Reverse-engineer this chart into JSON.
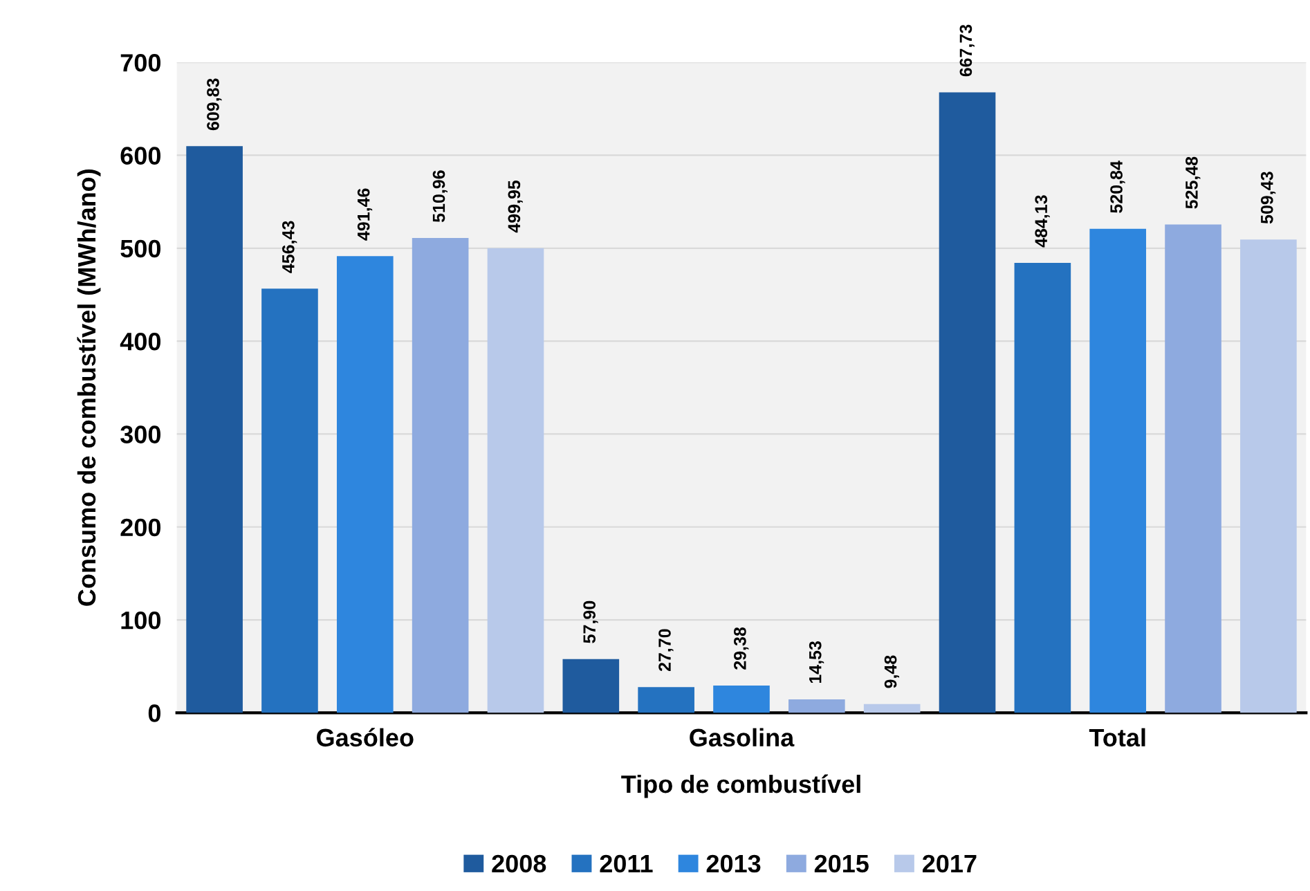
{
  "chart_data": {
    "type": "bar",
    "xlabel": "Tipo de combustível",
    "ylabel": "Consumo de combustível (MWh/ano)",
    "categories": [
      "Gasóleo",
      "Gasolina",
      "Total"
    ],
    "series": [
      {
        "name": "2008",
        "color": "#1f5b9e",
        "values": [
          609.83,
          57.9,
          667.73
        ],
        "value_labels": [
          "609,83",
          "57,90",
          "667,73"
        ]
      },
      {
        "name": "2011",
        "color": "#2472c0",
        "values": [
          456.43,
          27.7,
          484.13
        ],
        "value_labels": [
          "456,43",
          "27,70",
          "484,13"
        ]
      },
      {
        "name": "2013",
        "color": "#2e86de",
        "values": [
          491.46,
          29.38,
          520.84
        ],
        "value_labels": [
          "491,46",
          "29,38",
          "520,84"
        ]
      },
      {
        "name": "2015",
        "color": "#8eaadf",
        "values": [
          510.96,
          14.53,
          525.48
        ],
        "value_labels": [
          "510,96",
          "14,53",
          "525,48"
        ]
      },
      {
        "name": "2017",
        "color": "#b8c9ea",
        "values": [
          499.95,
          9.48,
          509.43
        ],
        "value_labels": [
          "499,95",
          "9,48",
          "509,43"
        ]
      }
    ],
    "ylim": [
      0,
      700
    ],
    "yticks": [
      0,
      100,
      200,
      300,
      400,
      500,
      600,
      700
    ],
    "grid": "y",
    "legend": "bottom"
  }
}
